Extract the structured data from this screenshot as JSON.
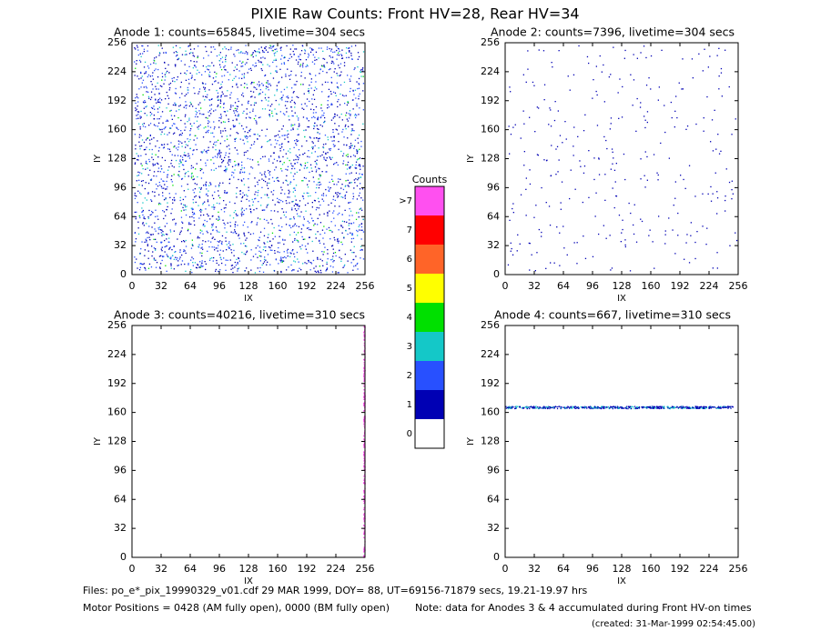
{
  "title": "PIXIE Raw Counts:  Front HV=28, Rear HV=34",
  "chart_data": [
    {
      "type": "heatmap",
      "title": "Anode 1: counts=65845, livetime=304 secs",
      "counts": 65845,
      "xlabel": "IX",
      "ylabel": "IY",
      "xlim": [
        0,
        256
      ],
      "ylim": [
        0,
        256
      ],
      "xticks": [
        0,
        32,
        64,
        96,
        128,
        160,
        192,
        224,
        256
      ],
      "yticks": [
        0,
        32,
        64,
        96,
        128,
        160,
        192,
        224,
        256
      ]
    },
    {
      "type": "heatmap",
      "title": "Anode 2: counts=7396, livetime=304 secs",
      "counts": 7396,
      "xlabel": "IX",
      "ylabel": "IY",
      "xlim": [
        0,
        256
      ],
      "ylim": [
        0,
        256
      ],
      "xticks": [
        0,
        32,
        64,
        96,
        128,
        160,
        192,
        224,
        256
      ],
      "yticks": [
        0,
        32,
        64,
        96,
        128,
        160,
        192,
        224,
        256
      ]
    },
    {
      "type": "heatmap",
      "title": "Anode 3: counts=40216, livetime=310 secs",
      "counts": 40216,
      "xlabel": "IX",
      "ylabel": "IY",
      "xlim": [
        0,
        256
      ],
      "ylim": [
        0,
        256
      ],
      "xticks": [
        0,
        32,
        64,
        96,
        128,
        160,
        192,
        224,
        256
      ],
      "yticks": [
        0,
        32,
        64,
        96,
        128,
        160,
        192,
        224,
        256
      ]
    },
    {
      "type": "heatmap",
      "title": "Anode 4: counts=667, livetime=310 secs",
      "counts": 667,
      "xlabel": "IX",
      "ylabel": "IY",
      "xlim": [
        0,
        256
      ],
      "ylim": [
        0,
        256
      ],
      "xticks": [
        0,
        32,
        64,
        96,
        128,
        160,
        192,
        224,
        256
      ],
      "yticks": [
        0,
        32,
        64,
        96,
        128,
        160,
        192,
        224,
        256
      ]
    }
  ],
  "colorbar": {
    "title": "Counts",
    "labels": [
      "0",
      "1",
      "2",
      "3",
      "4",
      "5",
      "6",
      "7",
      ">7"
    ],
    "colors": [
      "#ffffff",
      "#0000b4",
      "#2850ff",
      "#14c8c8",
      "#00e000",
      "#ffff00",
      "#ff6428",
      "#ff0000",
      "#ff50f0"
    ]
  },
  "footer": {
    "files": "Files: po_e*_pix_19990329_v01.cdf   29 MAR 1999, DOY= 88, UT=69156-71879 secs, 19.21-19.97 hrs",
    "motor": "Motor Positions = 0428 (AM fully open), 0000 (BM fully open)",
    "note": "Note: data for Anodes 3 & 4 accumulated during Front HV-on times",
    "created": "(created: 31-Mar-1999 02:54:45.00)"
  }
}
